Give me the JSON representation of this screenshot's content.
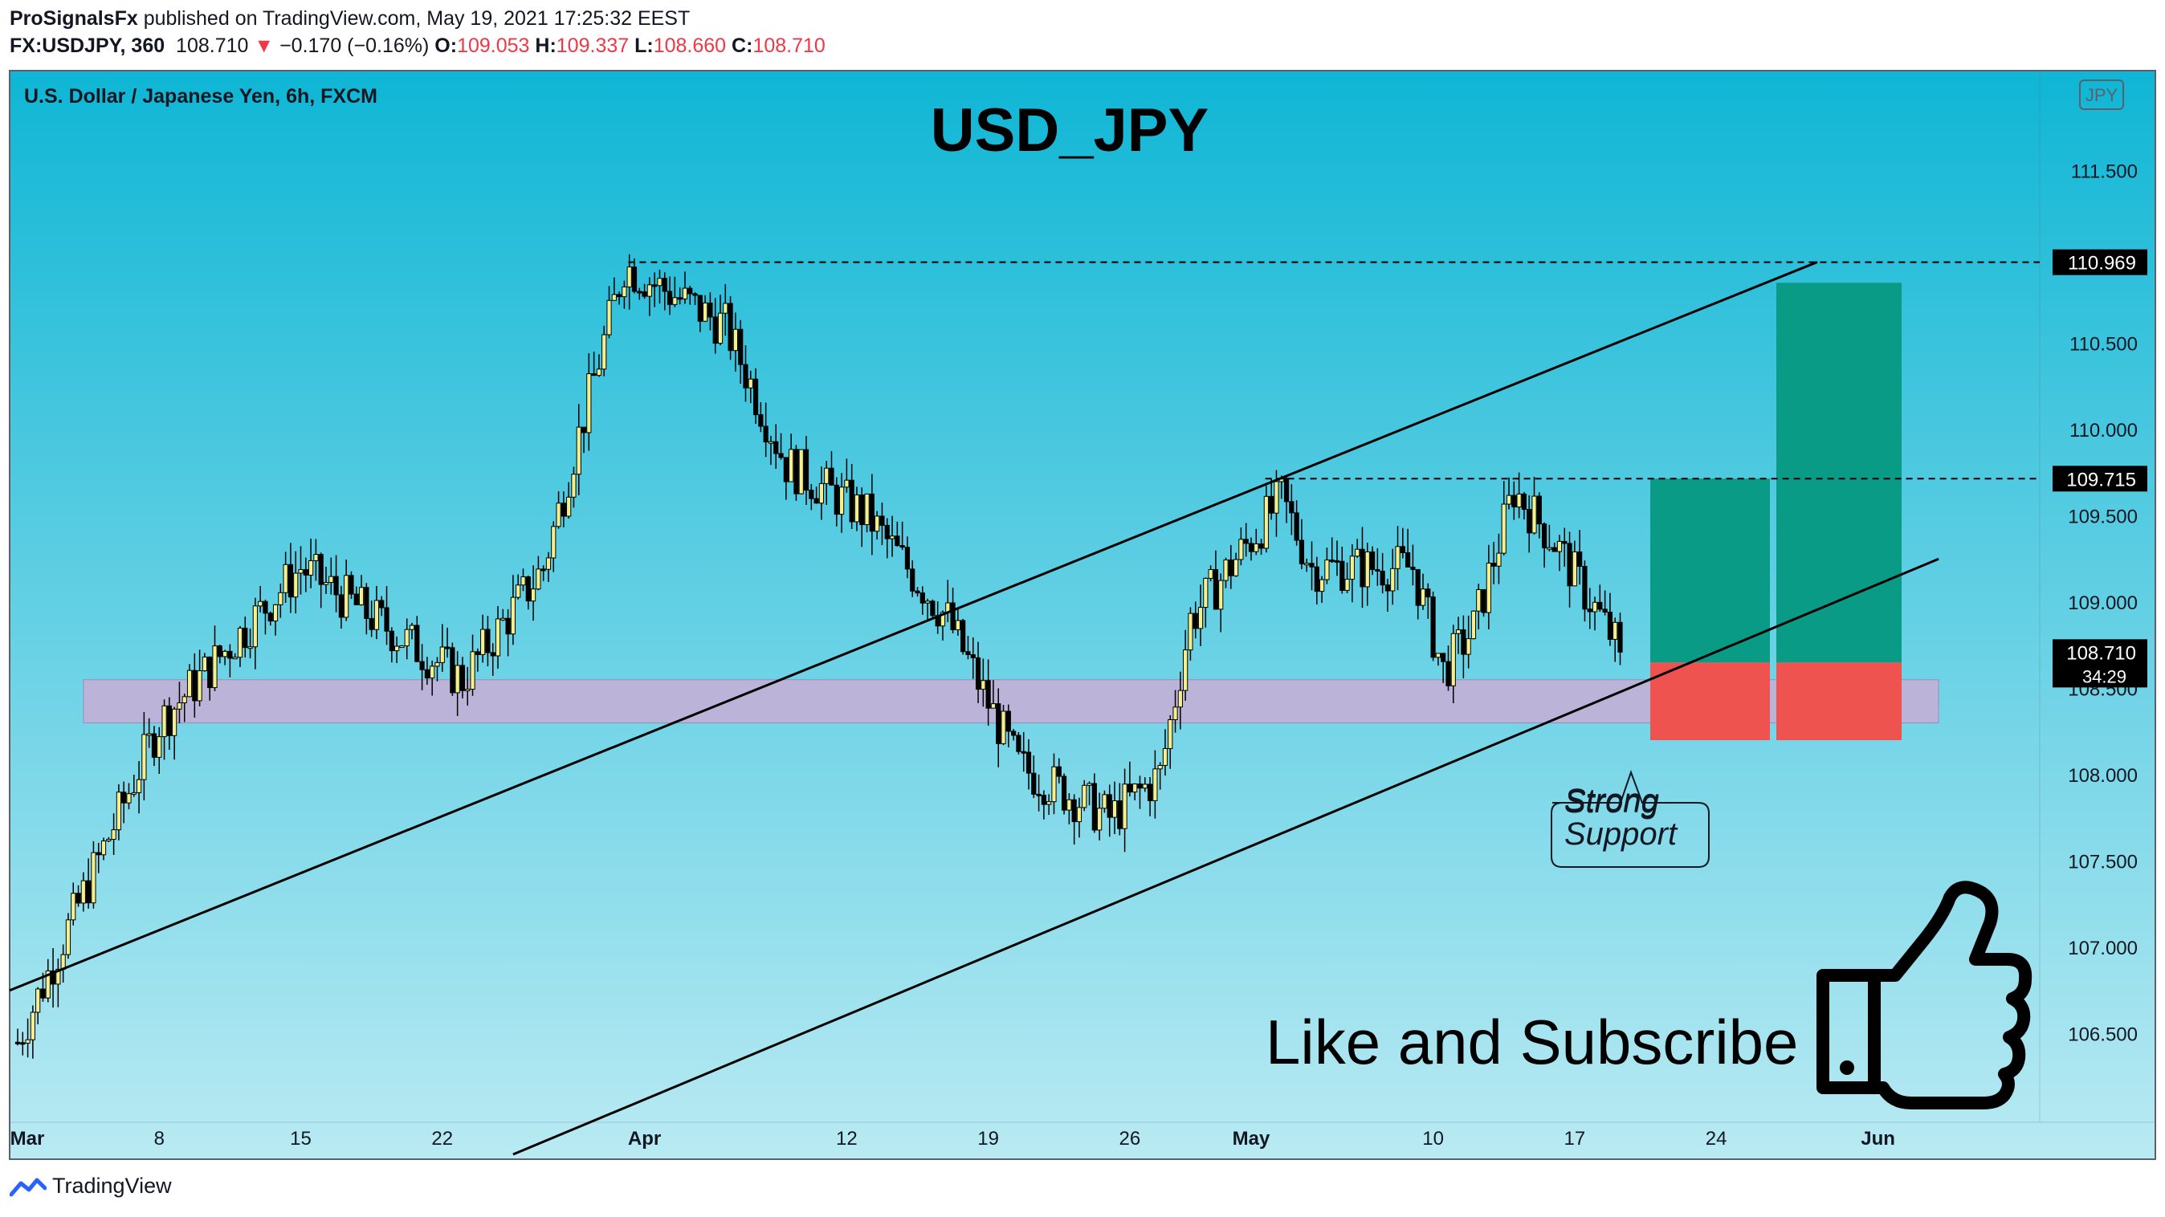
{
  "publish_line": {
    "author": "ProSignalsFx",
    "rest": " published on TradingView.com, May 19, 2021 17:25:32 EEST"
  },
  "quote_line": {
    "symbol": "FX:USDJPY, 360",
    "last": "108.710",
    "arrow": "▼",
    "change": "−0.170 (−0.16%)",
    "o_label": "O:",
    "o": "109.053",
    "h_label": "H:",
    "h": "109.337",
    "l_label": "L:",
    "l": "108.660",
    "c_label": "C:",
    "c": "108.710"
  },
  "footer": {
    "brand": "TradingView"
  },
  "colors": {
    "bg_top": "#0fb6d5",
    "bg_bottom": "#b9eaf3",
    "candle_up": "#f5f08e",
    "candle_down": "#000000",
    "support_zone": "#c4b0d6",
    "target": "#0a9b87",
    "stop": "#ef5350"
  },
  "chart_data": {
    "type": "candlestick",
    "instrument": "U.S. Dollar / Japanese Yen, 6h, FXCM",
    "title": "USD_JPY",
    "currency_badge": "JPY",
    "y_ticks": [
      "111.500",
      "110.500",
      "110.000",
      "109.500",
      "109.000",
      "108.000",
      "107.500",
      "107.000",
      "106.500"
    ],
    "ylim": [
      106.0,
      112.0
    ],
    "x_ticks": [
      {
        "day": 0,
        "label": "Mar"
      },
      {
        "day": 7,
        "label": "8"
      },
      {
        "day": 14,
        "label": "15"
      },
      {
        "day": 21,
        "label": "22"
      },
      {
        "day": 31,
        "label": "Apr"
      },
      {
        "day": 41,
        "label": "12"
      },
      {
        "day": 48,
        "label": "19"
      },
      {
        "day": 55,
        "label": "26"
      },
      {
        "day": 61,
        "label": "May"
      },
      {
        "day": 70,
        "label": "10"
      },
      {
        "day": 77,
        "label": "17"
      },
      {
        "day": 84,
        "label": "24"
      },
      {
        "day": 92,
        "label": "Jun"
      }
    ],
    "price_labels": [
      {
        "value": 110.969,
        "text": "110.969"
      },
      {
        "value": 109.715,
        "text": "109.715"
      },
      {
        "value": 108.71,
        "text": "108.710",
        "sub": "34:29"
      }
    ],
    "hidden_tick": "108.500",
    "key_points_day_price": [
      {
        "day": 0,
        "price": 106.45
      },
      {
        "day": 7,
        "price": 108.3
      },
      {
        "day": 14,
        "price": 109.2
      },
      {
        "day": 22,
        "price": 108.55
      },
      {
        "day": 26,
        "price": 109.2
      },
      {
        "day": 30,
        "price": 110.95
      },
      {
        "day": 35,
        "price": 110.6
      },
      {
        "day": 38,
        "price": 109.8
      },
      {
        "day": 42,
        "price": 109.5
      },
      {
        "day": 46,
        "price": 108.9
      },
      {
        "day": 49.5,
        "price": 108.05
      },
      {
        "day": 54,
        "price": 107.75
      },
      {
        "day": 56.5,
        "price": 108.0
      },
      {
        "day": 58,
        "price": 108.9
      },
      {
        "day": 62.5,
        "price": 109.6
      },
      {
        "day": 64,
        "price": 109.2
      },
      {
        "day": 69,
        "price": 109.2
      },
      {
        "day": 70.5,
        "price": 108.6
      },
      {
        "day": 72,
        "price": 108.85
      },
      {
        "day": 74,
        "price": 109.65
      },
      {
        "day": 76,
        "price": 109.35
      },
      {
        "day": 79.3,
        "price": 108.71
      }
    ],
    "support_zone": {
      "from_price": 108.3,
      "to_price": 108.55
    },
    "channel_upper": [
      {
        "day": 0,
        "price": 106.75
      },
      {
        "day": 89,
        "price": 110.97
      }
    ],
    "channel_lower": [
      {
        "day": 24.5,
        "price": 105.8
      },
      {
        "day": 95,
        "price": 109.25
      }
    ],
    "trade_boxes": [
      {
        "entry": 108.65,
        "target": 109.715,
        "stop": 108.2
      },
      {
        "entry": 108.65,
        "target": 110.85,
        "stop": 108.2
      }
    ],
    "annotations": {
      "strong_support": [
        "Strong",
        "Support"
      ],
      "cta": "Like and Subscribe"
    }
  }
}
